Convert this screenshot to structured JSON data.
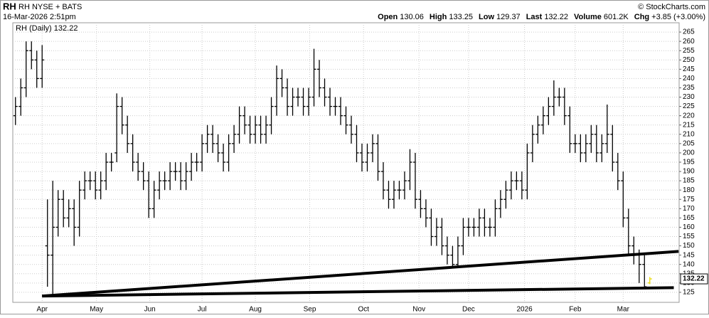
{
  "header": {
    "symbol": "RH",
    "exchange": "RH NYSE + BATS",
    "date": "16-Mar-2026 2:51pm",
    "copyright": "© StockCharts.com",
    "quote": [
      [
        "Open",
        "130.06"
      ],
      [
        "High",
        "133.25"
      ],
      [
        "Low",
        "129.37"
      ],
      [
        "Last",
        "132.22"
      ],
      [
        "Volume",
        "601.2K"
      ],
      [
        "Chg",
        "+3.85 (+3.00%)"
      ]
    ]
  },
  "chart_data": {
    "type": "ohlc",
    "grid": true,
    "xlim": [
      -0.5,
      124.5
    ],
    "ylim": [
      119.6,
      270
    ],
    "yticks": [
      125,
      130,
      135,
      140,
      145,
      150,
      155,
      160,
      165,
      170,
      175,
      180,
      185,
      190,
      195,
      200,
      205,
      210,
      215,
      220,
      225,
      230,
      235,
      240,
      245,
      250,
      255,
      260,
      265
    ],
    "xticks": [
      {
        "value": 5,
        "label": "Apr"
      },
      {
        "value": 15.2,
        "label": "May"
      },
      {
        "value": 25.2,
        "label": "Jun"
      },
      {
        "value": 35,
        "label": "Jul"
      },
      {
        "value": 45,
        "label": "Aug"
      },
      {
        "value": 55.2,
        "label": "Sep"
      },
      {
        "value": 65.3,
        "label": "Oct"
      },
      {
        "value": 75.7,
        "label": "Nov"
      },
      {
        "value": 85,
        "label": "Dec"
      },
      {
        "value": 95.5,
        "label": "2026"
      },
      {
        "value": 105,
        "label": "Feb"
      },
      {
        "value": 114,
        "label": "Mar"
      }
    ],
    "series": [
      {
        "name": "RH (Daily)",
        "color": "#000000",
        "last_color": "#e8d800",
        "open": [
          220,
          225,
          235,
          255,
          250,
          240,
          150,
          145,
          160,
          175,
          165,
          170,
          160,
          180,
          185,
          185,
          180,
          185,
          195,
          200,
          225,
          215,
          205,
          195,
          190,
          185,
          170,
          180,
          185,
          185,
          190,
          190,
          185,
          190,
          195,
          195,
          205,
          210,
          205,
          200,
          195,
          205,
          210,
          220,
          215,
          210,
          215,
          210,
          215,
          225,
          240,
          235,
          225,
          230,
          230,
          225,
          230,
          245,
          235,
          230,
          225,
          225,
          220,
          215,
          210,
          200,
          195,
          200,
          205,
          190,
          180,
          175,
          180,
          180,
          185,
          195,
          175,
          170,
          165,
          155,
          160,
          150,
          145,
          140,
          150,
          160,
          160,
          160,
          165,
          160,
          160,
          170,
          175,
          180,
          185,
          185,
          180,
          200,
          210,
          215,
          220,
          225,
          230,
          230,
          220,
          205,
          205,
          200,
          205,
          210,
          200,
          205,
          210,
          195,
          185,
          165,
          150,
          145,
          140,
          130.06
        ],
        "high": [
          230,
          240,
          260,
          260,
          255,
          258,
          175,
          185,
          180,
          180,
          175,
          175,
          185,
          190,
          190,
          190,
          190,
          200,
          200,
          232,
          230,
          220,
          210,
          200,
          195,
          190,
          185,
          190,
          190,
          195,
          195,
          195,
          195,
          200,
          200,
          210,
          215,
          215,
          210,
          205,
          210,
          215,
          225,
          225,
          220,
          220,
          220,
          220,
          230,
          247,
          245,
          240,
          235,
          235,
          235,
          235,
          256,
          250,
          240,
          235,
          230,
          230,
          225,
          220,
          215,
          205,
          205,
          210,
          210,
          195,
          185,
          185,
          185,
          190,
          202,
          200,
          180,
          175,
          170,
          165,
          165,
          155,
          150,
          155,
          165,
          165,
          165,
          170,
          170,
          165,
          175,
          180,
          185,
          190,
          190,
          190,
          205,
          215,
          220,
          225,
          230,
          239,
          235,
          235,
          225,
          210,
          210,
          210,
          215,
          215,
          210,
          226,
          215,
          200,
          190,
          170,
          155,
          148,
          145,
          133.25
        ],
        "low": [
          215,
          220,
          230,
          245,
          235,
          235,
          128,
          123,
          155,
          160,
          160,
          150,
          155,
          175,
          180,
          175,
          175,
          180,
          190,
          195,
          210,
          200,
          190,
          185,
          180,
          165,
          165,
          175,
          180,
          180,
          185,
          180,
          180,
          185,
          190,
          190,
          200,
          200,
          195,
          190,
          190,
          200,
          205,
          210,
          205,
          205,
          205,
          205,
          210,
          220,
          230,
          220,
          220,
          225,
          220,
          220,
          225,
          230,
          225,
          220,
          220,
          215,
          210,
          205,
          195,
          190,
          190,
          195,
          185,
          175,
          170,
          170,
          175,
          175,
          180,
          170,
          165,
          160,
          150,
          150,
          145,
          140,
          138,
          138,
          145,
          155,
          155,
          155,
          155,
          155,
          155,
          165,
          170,
          175,
          180,
          175,
          175,
          195,
          205,
          210,
          215,
          220,
          225,
          215,
          200,
          200,
          195,
          195,
          200,
          195,
          195,
          200,
          190,
          180,
          160,
          145,
          140,
          130,
          127,
          129.37
        ],
        "close": [
          225,
          235,
          255,
          250,
          240,
          250,
          145,
          160,
          175,
          165,
          170,
          160,
          180,
          185,
          185,
          180,
          185,
          195,
          195,
          225,
          215,
          205,
          195,
          190,
          185,
          170,
          180,
          185,
          185,
          190,
          190,
          185,
          190,
          195,
          195,
          205,
          210,
          205,
          200,
          195,
          205,
          210,
          220,
          215,
          210,
          215,
          210,
          215,
          225,
          240,
          235,
          225,
          230,
          230,
          225,
          230,
          245,
          235,
          230,
          225,
          225,
          220,
          215,
          210,
          200,
          195,
          200,
          205,
          190,
          180,
          175,
          180,
          180,
          185,
          195,
          175,
          170,
          165,
          155,
          160,
          150,
          145,
          140,
          150,
          160,
          160,
          160,
          165,
          160,
          160,
          170,
          175,
          180,
          185,
          185,
          180,
          200,
          210,
          215,
          220,
          225,
          230,
          230,
          220,
          205,
          205,
          200,
          205,
          210,
          200,
          205,
          210,
          195,
          185,
          165,
          150,
          145,
          140,
          128,
          132.22
        ]
      }
    ],
    "trendlines": [
      {
        "x": [
          5,
          124.4
        ],
        "values": [
          123,
          147
        ]
      },
      {
        "x": [
          5,
          123.5
        ],
        "values": [
          123,
          127.5
        ]
      }
    ]
  }
}
